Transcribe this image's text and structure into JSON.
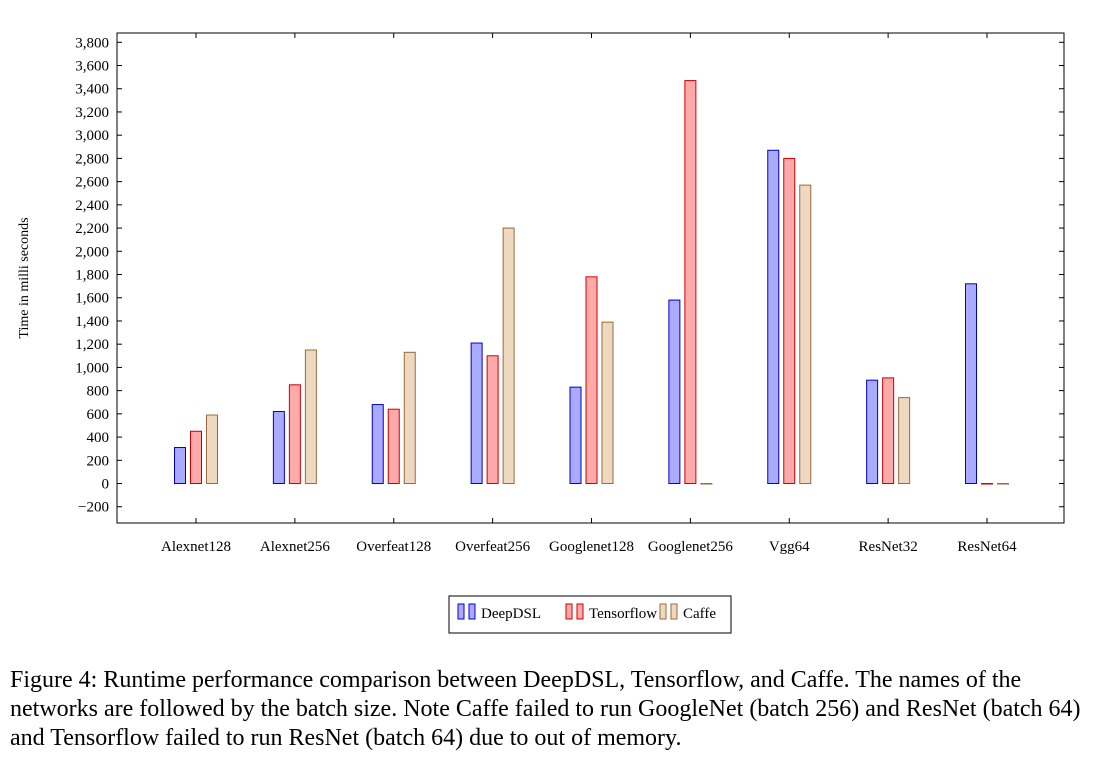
{
  "chart_data": {
    "type": "bar",
    "ylabel": "Time in milli seconds",
    "ylim": [
      -340,
      3880
    ],
    "yticks": [
      -200,
      0,
      200,
      400,
      600,
      800,
      1000,
      1200,
      1400,
      1600,
      1800,
      2000,
      2200,
      2400,
      2600,
      2800,
      3000,
      3200,
      3400,
      3600,
      3800
    ],
    "ytick_labels": [
      "−200",
      "0",
      "200",
      "400",
      "600",
      "800",
      "1,000",
      "1,200",
      "1,400",
      "1,600",
      "1,800",
      "2,000",
      "2,200",
      "2,400",
      "2,600",
      "2,800",
      "3,000",
      "3,200",
      "3,400",
      "3,600",
      "3,800"
    ],
    "categories": [
      "Alexnet128",
      "Alexnet256",
      "Overfeat128",
      "Overfeat256",
      "Googlenet128",
      "Googlenet256",
      "Vgg64",
      "ResNet32",
      "ResNet64"
    ],
    "series": [
      {
        "name": "DeepDSL",
        "fill": "#aaaaff",
        "stroke": "#0000cc",
        "values": [
          310,
          620,
          680,
          1210,
          830,
          1580,
          2870,
          890,
          1720
        ]
      },
      {
        "name": "Tensorflow",
        "fill": "#ffaaaa",
        "stroke": "#cc0000",
        "values": [
          450,
          850,
          640,
          1100,
          1780,
          3470,
          2800,
          910,
          0
        ]
      },
      {
        "name": "Caffe",
        "fill": "#eed8c0",
        "stroke": "#9a6a3a",
        "values": [
          590,
          1150,
          1130,
          2200,
          1390,
          0,
          2570,
          740,
          0
        ]
      }
    ],
    "grid": false,
    "legend": "bottom-center"
  },
  "caption": "Figure 4: Runtime performance comparison between DeepDSL, Tensorflow, and Caffe. The names of the networks are followed by the batch size. Note Caffe failed to run GoogleNet (batch 256) and ResNet (batch 64) and Tensorflow failed to run ResNet (batch 64) due to out of memory."
}
